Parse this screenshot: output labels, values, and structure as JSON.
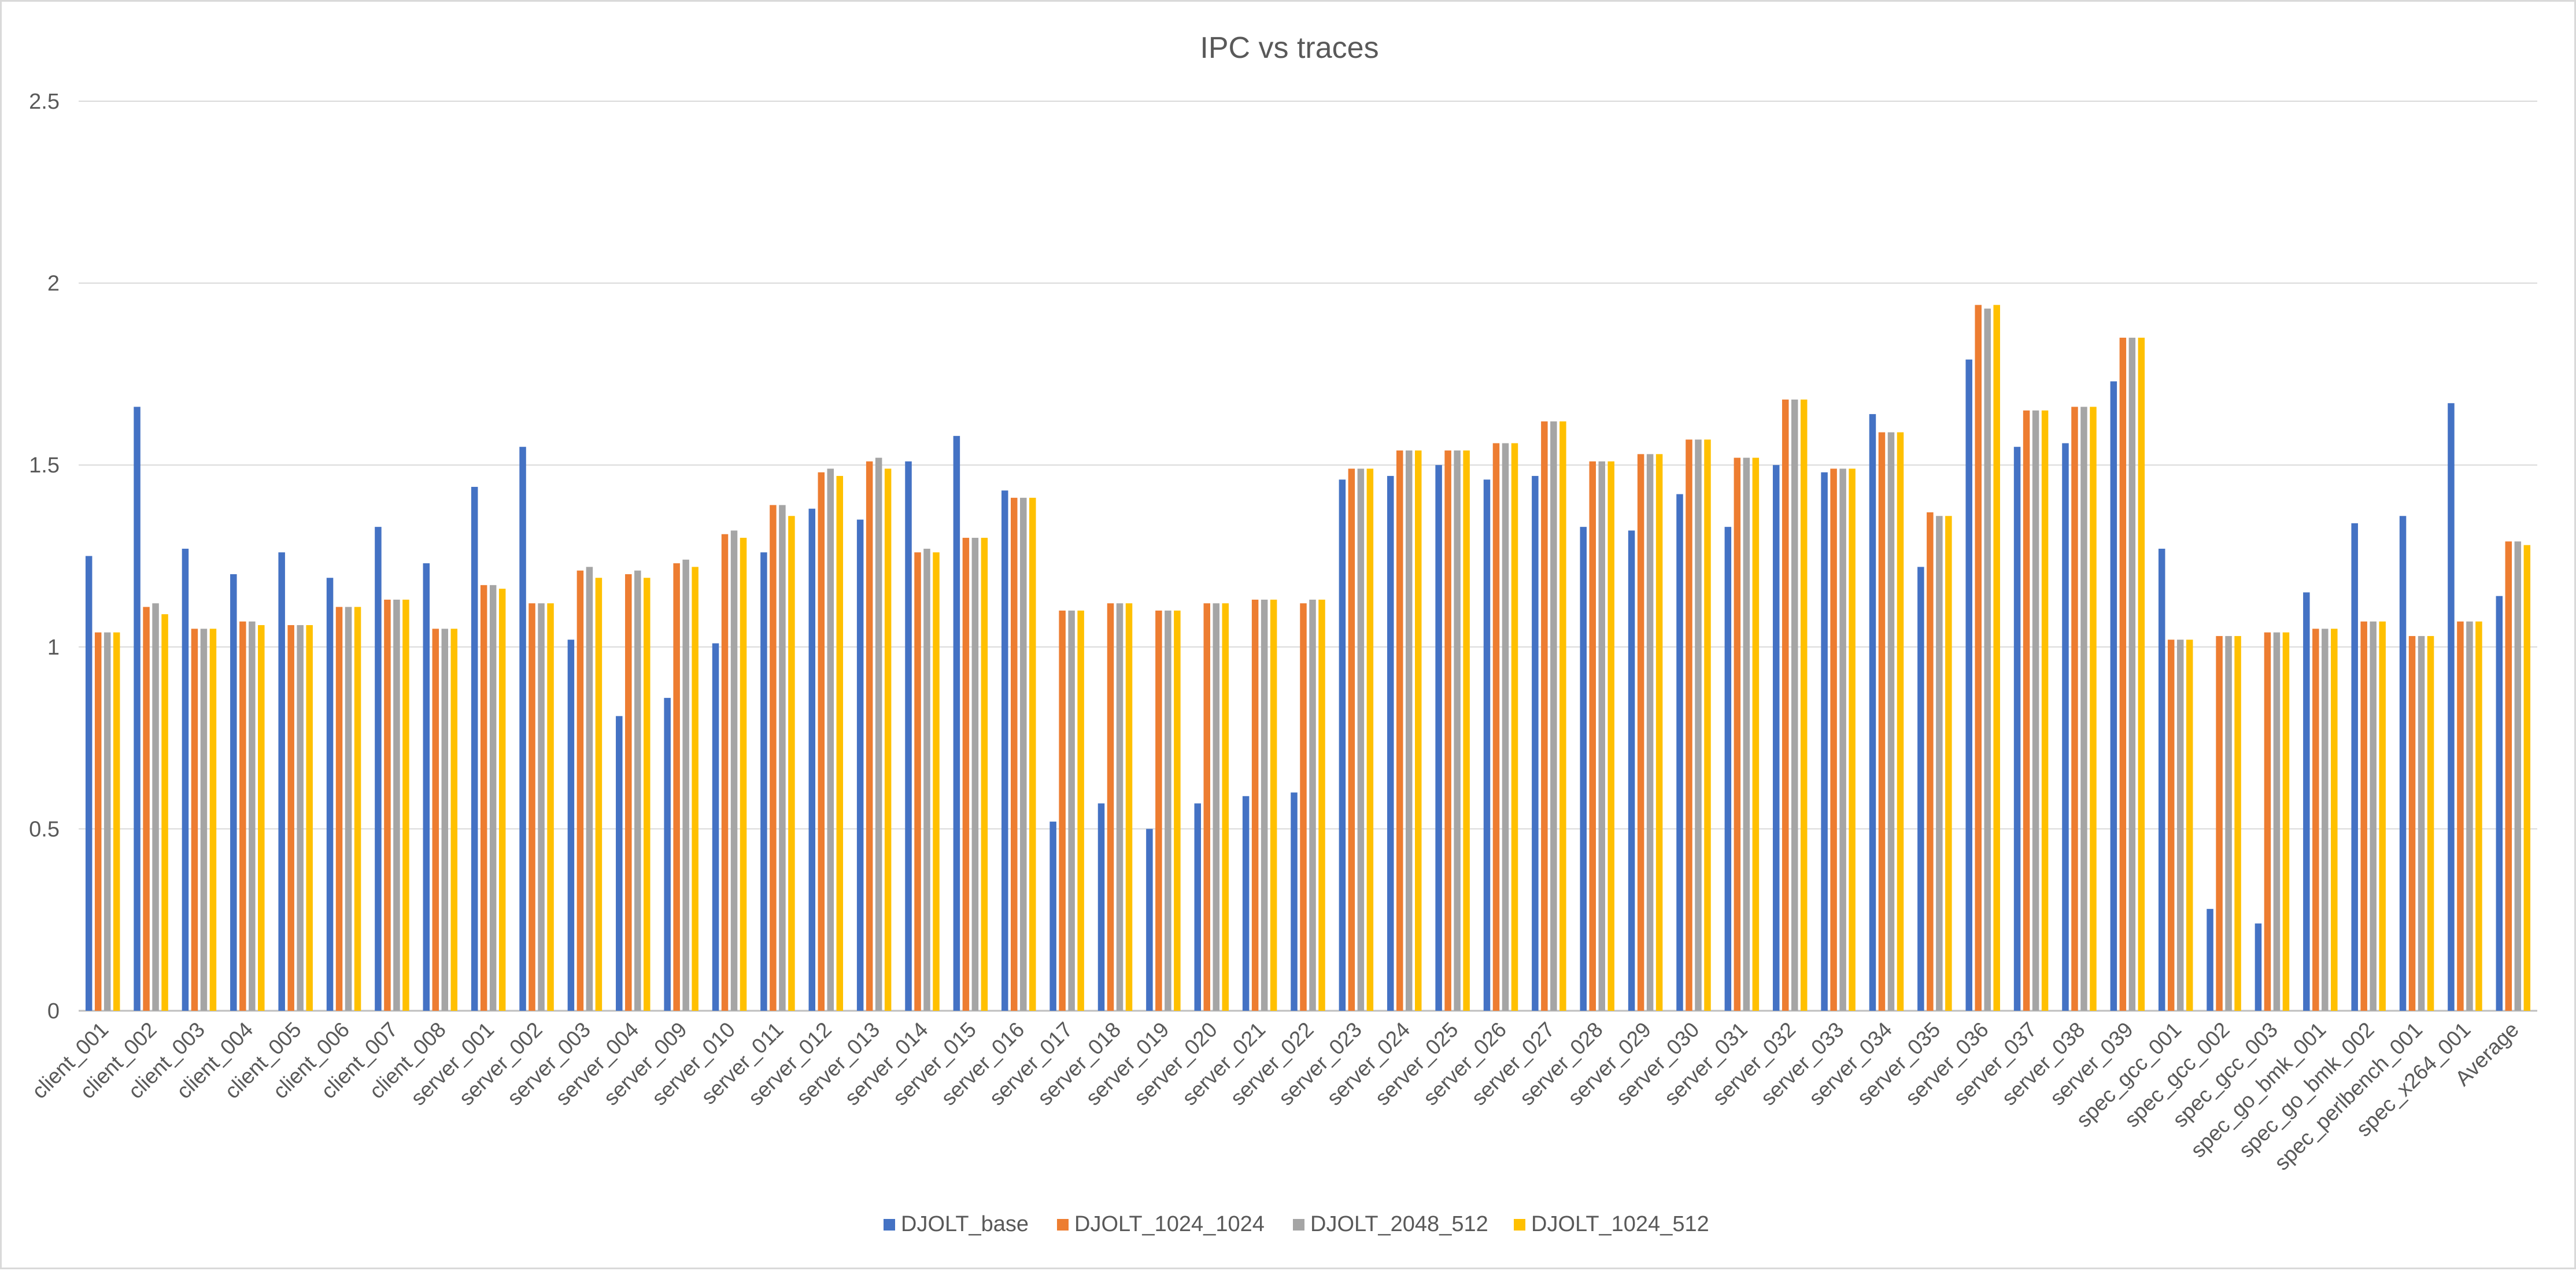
{
  "chart_data": {
    "type": "bar",
    "title": "IPC vs traces",
    "xlabel": "",
    "ylabel": "",
    "ylim": [
      0,
      2.5
    ],
    "yticks": [
      "0",
      "0.5",
      "1",
      "1.5",
      "2",
      "2.5"
    ],
    "grid": true,
    "legend_position": "bottom",
    "categories": [
      "client_001",
      "client_002",
      "client_003",
      "client_004",
      "client_005",
      "client_006",
      "client_007",
      "client_008",
      "server_001",
      "server_002",
      "server_003",
      "server_004",
      "server_009",
      "server_010",
      "server_011",
      "server_012",
      "server_013",
      "server_014",
      "server_015",
      "server_016",
      "server_017",
      "server_018",
      "server_019",
      "server_020",
      "server_021",
      "server_022",
      "server_023",
      "server_024",
      "server_025",
      "server_026",
      "server_027",
      "server_028",
      "server_029",
      "server_030",
      "server_031",
      "server_032",
      "server_033",
      "server_034",
      "server_035",
      "server_036",
      "server_037",
      "server_038",
      "server_039",
      "spec_gcc_001",
      "spec_gcc_002",
      "spec_gcc_003",
      "spec_go_bmk_001",
      "spec_go_bmk_002",
      "spec_perlbench_001",
      "spec_x264_001",
      "Average"
    ],
    "series": [
      {
        "name": "DJOLT_base",
        "color": "#4472C4",
        "values": [
          1.25,
          1.66,
          1.27,
          1.2,
          1.26,
          1.19,
          1.33,
          1.23,
          1.44,
          1.55,
          1.02,
          0.81,
          0.86,
          1.01,
          1.26,
          1.38,
          1.35,
          1.51,
          1.58,
          1.43,
          0.52,
          0.57,
          0.5,
          0.57,
          0.59,
          0.6,
          1.46,
          1.47,
          1.5,
          1.46,
          1.47,
          1.33,
          1.32,
          1.42,
          1.33,
          1.5,
          1.48,
          1.64,
          1.22,
          1.79,
          1.55,
          1.56,
          1.73,
          1.27,
          0.28,
          0.24,
          1.15,
          1.34,
          1.36,
          1.67,
          1.14
        ]
      },
      {
        "name": "DJOLT_1024_1024",
        "color": "#ED7D31",
        "values": [
          1.04,
          1.11,
          1.05,
          1.07,
          1.06,
          1.11,
          1.13,
          1.05,
          1.17,
          1.12,
          1.21,
          1.2,
          1.23,
          1.31,
          1.39,
          1.48,
          1.51,
          1.26,
          1.3,
          1.41,
          1.1,
          1.12,
          1.1,
          1.12,
          1.13,
          1.12,
          1.49,
          1.54,
          1.54,
          1.56,
          1.62,
          1.51,
          1.53,
          1.57,
          1.52,
          1.68,
          1.49,
          1.59,
          1.37,
          1.94,
          1.65,
          1.66,
          1.85,
          1.02,
          1.03,
          1.04,
          1.05,
          1.07,
          1.03,
          1.07,
          1.29
        ]
      },
      {
        "name": "DJOLT_2048_512",
        "color": "#A5A5A5",
        "values": [
          1.04,
          1.12,
          1.05,
          1.07,
          1.06,
          1.11,
          1.13,
          1.05,
          1.17,
          1.12,
          1.22,
          1.21,
          1.24,
          1.32,
          1.39,
          1.49,
          1.52,
          1.27,
          1.3,
          1.41,
          1.1,
          1.12,
          1.1,
          1.12,
          1.13,
          1.13,
          1.49,
          1.54,
          1.54,
          1.56,
          1.62,
          1.51,
          1.53,
          1.57,
          1.52,
          1.68,
          1.49,
          1.59,
          1.36,
          1.93,
          1.65,
          1.66,
          1.85,
          1.02,
          1.03,
          1.04,
          1.05,
          1.07,
          1.03,
          1.07,
          1.29
        ]
      },
      {
        "name": "DJOLT_1024_512",
        "color": "#FFC000",
        "values": [
          1.04,
          1.09,
          1.05,
          1.06,
          1.06,
          1.11,
          1.13,
          1.05,
          1.16,
          1.12,
          1.19,
          1.19,
          1.22,
          1.3,
          1.36,
          1.47,
          1.49,
          1.26,
          1.3,
          1.41,
          1.1,
          1.12,
          1.1,
          1.12,
          1.13,
          1.13,
          1.49,
          1.54,
          1.54,
          1.56,
          1.62,
          1.51,
          1.53,
          1.57,
          1.52,
          1.68,
          1.49,
          1.59,
          1.36,
          1.94,
          1.65,
          1.66,
          1.85,
          1.02,
          1.03,
          1.04,
          1.05,
          1.07,
          1.03,
          1.07,
          1.28
        ]
      }
    ]
  }
}
